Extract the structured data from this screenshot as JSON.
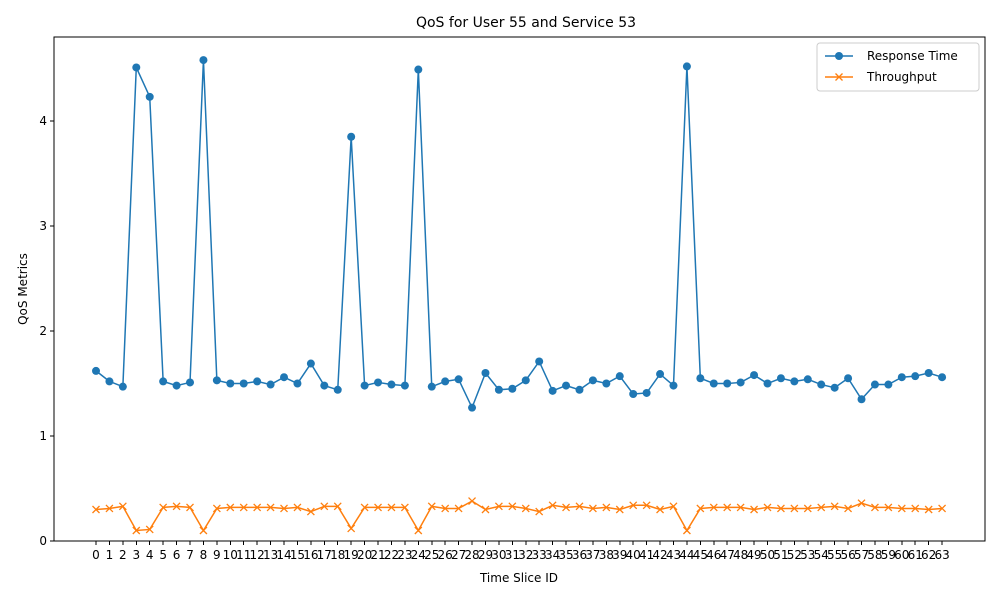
{
  "chart_data": {
    "type": "line",
    "title": "QoS for User 55 and Service 53",
    "xlabel": "Time Slice ID",
    "ylabel": "QoS Metrics",
    "ylim": [
      0,
      4.8
    ],
    "yticks": [
      0,
      1,
      2,
      3,
      4
    ],
    "x": [
      0,
      1,
      2,
      3,
      4,
      5,
      6,
      7,
      8,
      9,
      10,
      11,
      12,
      13,
      14,
      15,
      16,
      17,
      18,
      19,
      20,
      21,
      22,
      23,
      24,
      25,
      26,
      27,
      28,
      29,
      30,
      31,
      32,
      33,
      34,
      35,
      36,
      37,
      38,
      39,
      40,
      41,
      42,
      43,
      44,
      45,
      46,
      47,
      48,
      49,
      50,
      51,
      52,
      53,
      54,
      55,
      56,
      57,
      58,
      59,
      60,
      61,
      62,
      63
    ],
    "legend_position": "top-right",
    "grid": false,
    "series": [
      {
        "name": "Response Time",
        "color": "#1f77b4",
        "marker": "circle",
        "values": [
          1.62,
          1.52,
          1.47,
          4.51,
          4.23,
          1.52,
          1.48,
          1.51,
          4.58,
          1.53,
          1.5,
          1.5,
          1.52,
          1.49,
          1.56,
          1.5,
          1.69,
          1.48,
          1.44,
          3.85,
          1.48,
          1.51,
          1.49,
          1.48,
          4.49,
          1.47,
          1.52,
          1.54,
          1.27,
          1.6,
          1.44,
          1.45,
          1.53,
          1.71,
          1.43,
          1.48,
          1.44,
          1.53,
          1.5,
          1.57,
          1.4,
          1.41,
          1.59,
          1.48,
          4.52,
          1.55,
          1.5,
          1.5,
          1.51,
          1.58,
          1.5,
          1.55,
          1.52,
          1.54,
          1.49,
          1.46,
          1.55,
          1.35,
          1.49,
          1.49,
          1.56,
          1.57,
          1.6,
          1.56
        ]
      },
      {
        "name": "Throughput",
        "color": "#ff7f0e",
        "marker": "x",
        "values": [
          0.3,
          0.31,
          0.33,
          0.1,
          0.11,
          0.32,
          0.33,
          0.32,
          0.1,
          0.31,
          0.32,
          0.32,
          0.32,
          0.32,
          0.31,
          0.32,
          0.28,
          0.33,
          0.33,
          0.12,
          0.32,
          0.32,
          0.32,
          0.32,
          0.1,
          0.33,
          0.31,
          0.31,
          0.38,
          0.3,
          0.33,
          0.33,
          0.31,
          0.28,
          0.34,
          0.32,
          0.33,
          0.31,
          0.32,
          0.3,
          0.34,
          0.34,
          0.3,
          0.33,
          0.1,
          0.31,
          0.32,
          0.32,
          0.32,
          0.3,
          0.32,
          0.31,
          0.31,
          0.31,
          0.32,
          0.33,
          0.31,
          0.36,
          0.32,
          0.32,
          0.31,
          0.31,
          0.3,
          0.31
        ]
      }
    ]
  }
}
